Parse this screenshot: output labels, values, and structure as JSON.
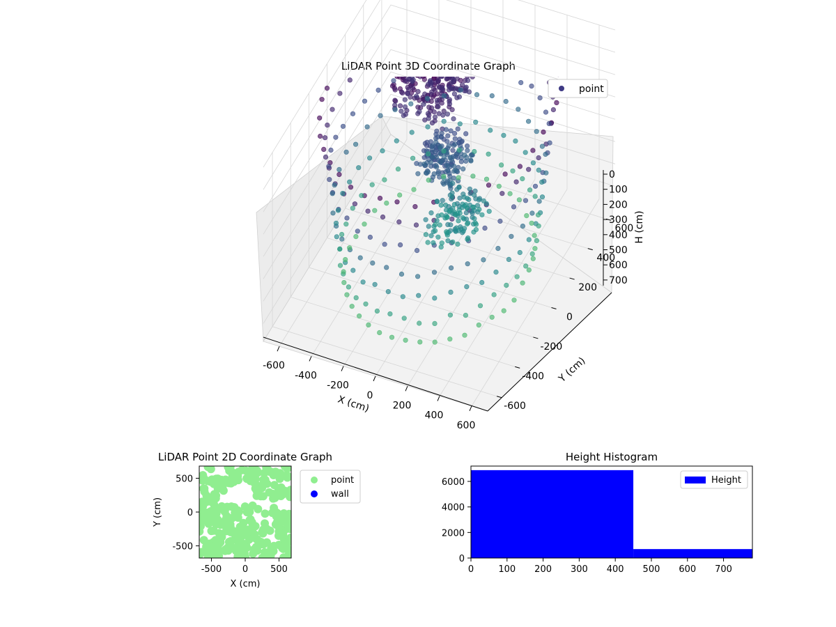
{
  "chart_data": [
    {
      "type": "scatter",
      "projection": "3d",
      "title": "LiDAR Point 3D Coordinate Graph",
      "xlabel": "X (cm)",
      "ylabel": "Y (cm)",
      "zlabel": "H (cm)",
      "xticks": [
        "-600",
        "-400",
        "-200",
        "0",
        "200",
        "400",
        "600"
      ],
      "yticks": [
        "-600",
        "-400",
        "-200",
        "0",
        "200",
        "400",
        "600"
      ],
      "zticks": [
        "0",
        "100",
        "200",
        "300",
        "400",
        "500",
        "600",
        "700"
      ],
      "xlim": [
        -700,
        700
      ],
      "ylim": [
        -700,
        700
      ],
      "zlim": [
        0,
        780
      ],
      "zaxis_inverted": true,
      "colormap": "viridis",
      "legend": {
        "position": "top-right",
        "entries": [
          {
            "label": "point",
            "color": "#3e3a84"
          }
        ]
      },
      "grid": true,
      "series": [
        {
          "name": "point",
          "rings": [
            {
              "r": 650,
              "h": 20,
              "n": 40
            },
            {
              "r": 620,
              "h": 120,
              "n": 40
            },
            {
              "r": 600,
              "h": 250,
              "n": 40
            },
            {
              "r": 580,
              "h": 380,
              "n": 40
            },
            {
              "r": 560,
              "h": 500,
              "n": 40
            },
            {
              "r": 540,
              "h": 620,
              "n": 40
            },
            {
              "r": 520,
              "h": 720,
              "n": 40
            }
          ],
          "cluster": [
            {
              "x": -150,
              "y": 200,
              "h": 80,
              "spread": 180,
              "n": 260
            },
            {
              "x": 0,
              "y": 60,
              "h": 300,
              "spread": 120,
              "n": 160
            },
            {
              "x": 100,
              "y": 0,
              "h": 500,
              "spread": 140,
              "n": 120
            }
          ]
        }
      ]
    },
    {
      "type": "scatter",
      "title": "LiDAR Point 2D Coordinate Graph",
      "xlabel": "X (cm)",
      "ylabel": "Y (cm)",
      "xticks": [
        "-500",
        "0",
        "500"
      ],
      "yticks": [
        "500",
        "0",
        "-500"
      ],
      "xlim": [
        -680,
        680
      ],
      "ylim": [
        -680,
        680
      ],
      "legend": {
        "position": "right",
        "entries": [
          {
            "label": "point",
            "color": "#90ee90"
          },
          {
            "label": "wall",
            "color": "#0000ff"
          }
        ]
      },
      "series": [
        {
          "name": "point",
          "color": "#90ee90"
        }
      ]
    },
    {
      "type": "bar",
      "title": "Height Histogram",
      "xticks": [
        "0",
        "100",
        "200",
        "300",
        "400",
        "500",
        "600",
        "700"
      ],
      "yticks": [
        "0",
        "2000",
        "4000",
        "6000"
      ],
      "xlim": [
        0,
        780
      ],
      "ylim": [
        0,
        7200
      ],
      "bins": [
        {
          "x0": 0,
          "x1": 450,
          "count": 6880
        },
        {
          "x0": 450,
          "x1": 780,
          "count": 700
        }
      ],
      "color": "#0000ff",
      "legend": {
        "position": "top-right",
        "entries": [
          {
            "label": "Height",
            "color": "#0000ff"
          }
        ]
      },
      "series": [
        {
          "name": "Height"
        }
      ]
    }
  ]
}
